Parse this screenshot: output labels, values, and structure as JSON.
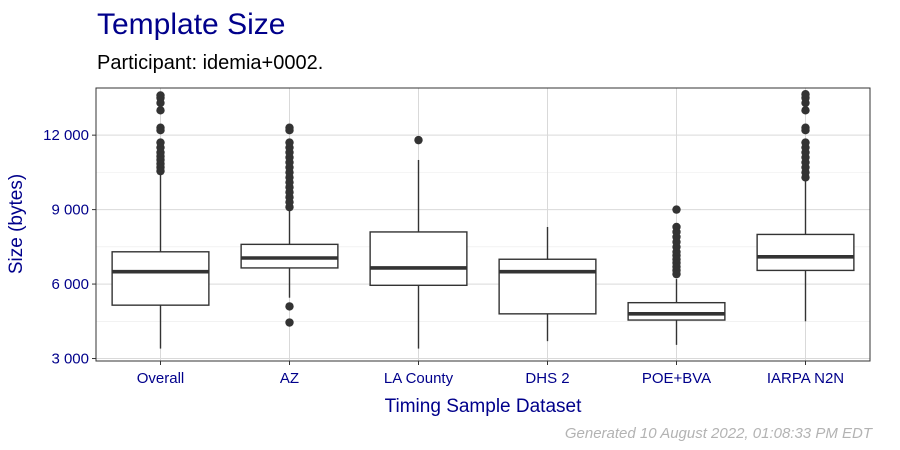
{
  "title": "Template Size",
  "subtitle": "Participant: idemia+0002.",
  "footer": "Generated 10 August 2022, 01:08:33 PM EDT",
  "colors": {
    "title": "#00008b",
    "axis_text": "#00008b",
    "panel_border": "#333333",
    "grid": "#d9d9d9",
    "box_line": "#333333",
    "outlier": "#333333",
    "footer": "#b3b3b3"
  },
  "chart_data": {
    "type": "box",
    "title": "Template Size",
    "subtitle": "Participant: idemia+0002.",
    "xlabel": "Timing Sample Dataset",
    "ylabel": "Size (bytes)",
    "ylim": [
      2900,
      13900
    ],
    "yticks": [
      3000,
      6000,
      9000,
      12000
    ],
    "ytick_labels": [
      "3 000",
      "6 000",
      "9 000",
      "12 000"
    ],
    "grid": true,
    "categories": [
      "Overall",
      "AZ",
      "LA County",
      "DHS 2",
      "POE+BVA",
      "IARPA N2N"
    ],
    "boxes": [
      {
        "whisker_low": 3400,
        "q1": 5150,
        "median": 6500,
        "q3": 7300,
        "whisker_high": 10400,
        "outliers": [
          10550,
          10700,
          10850,
          11000,
          11150,
          11300,
          11500,
          11700,
          12200,
          12300,
          13000,
          13300,
          13500,
          13600
        ]
      },
      {
        "whisker_low": 5450,
        "q1": 6650,
        "median": 7050,
        "q3": 7600,
        "whisker_high": 9000,
        "outliers": [
          4450,
          5100,
          9100,
          9300,
          9500,
          9700,
          9900,
          10100,
          10300,
          10500,
          10700,
          10900,
          11100,
          11300,
          11500,
          11700,
          12200,
          12300
        ]
      },
      {
        "whisker_low": 3400,
        "q1": 5950,
        "median": 6650,
        "q3": 8100,
        "whisker_high": 11000,
        "outliers": [
          11800
        ]
      },
      {
        "whisker_low": 3700,
        "q1": 4800,
        "median": 6500,
        "q3": 7000,
        "whisker_high": 8300,
        "outliers": []
      },
      {
        "whisker_low": 3550,
        "q1": 4550,
        "median": 4800,
        "q3": 5250,
        "whisker_high": 6200,
        "outliers": [
          6400,
          6550,
          6700,
          6850,
          7000,
          7150,
          7300,
          7500,
          7700,
          7900,
          8100,
          8300,
          9000
        ]
      },
      {
        "whisker_low": 4500,
        "q1": 6550,
        "median": 7100,
        "q3": 8000,
        "whisker_high": 10200,
        "outliers": [
          10300,
          10500,
          10700,
          10900,
          11100,
          11300,
          11500,
          11700,
          12200,
          12300,
          13000,
          13300,
          13500,
          13650
        ]
      }
    ]
  }
}
